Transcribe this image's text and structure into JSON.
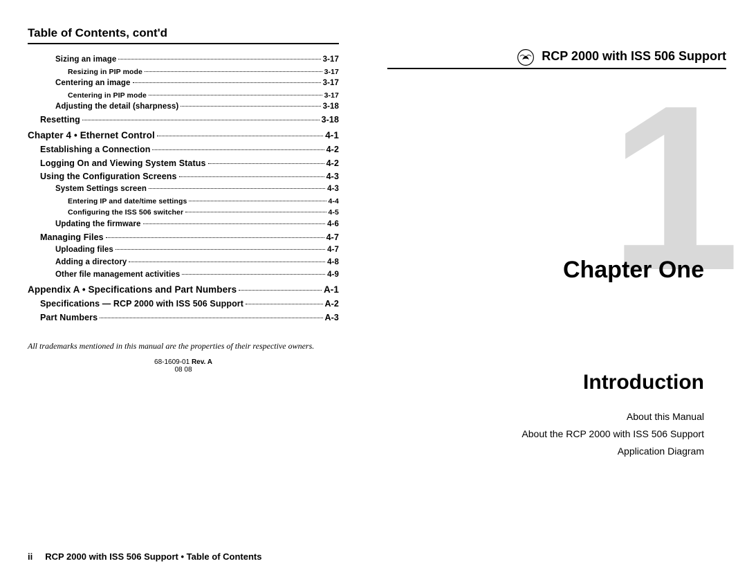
{
  "colors": {
    "text": "#000000",
    "background": "#ffffff",
    "big_number": "#d9d9d9",
    "rule": "#000000"
  },
  "left": {
    "header": "Table of Contents, cont'd",
    "toc": [
      {
        "label": "Sizing an image",
        "page": "3-17",
        "level": 3
      },
      {
        "label": "Resizing in PIP mode",
        "page": "3-17",
        "level": 4
      },
      {
        "label": "Centering an image",
        "page": "3-17",
        "level": 3
      },
      {
        "label": "Centering in PIP mode",
        "page": "3-17",
        "level": 4
      },
      {
        "label": "Adjusting the detail (sharpness)",
        "page": "3-18",
        "level": 3
      },
      {
        "label": "Resetting",
        "page": "3-18",
        "level": 2
      },
      {
        "label": "Chapter 4 • Ethernet Control",
        "page": "4-1",
        "level": 1
      },
      {
        "label": "Establishing a Connection",
        "page": "4-2",
        "level": 2
      },
      {
        "label": "Logging On and Viewing System Status",
        "page": "4-2",
        "level": 2
      },
      {
        "label": "Using the Configuration Screens",
        "page": "4-3",
        "level": 2
      },
      {
        "label": "System Settings screen",
        "page": "4-3",
        "level": 3
      },
      {
        "label": "Entering IP and date/time settings",
        "page": "4-4",
        "level": 4
      },
      {
        "label": "Configuring the ISS 506 switcher",
        "page": "4-5",
        "level": 4
      },
      {
        "label": "Updating the firmware",
        "page": "4-6",
        "level": 3
      },
      {
        "label": "Managing Files",
        "page": "4-7",
        "level": 2
      },
      {
        "label": "Uploading files",
        "page": "4-7",
        "level": 3
      },
      {
        "label": "Adding a directory",
        "page": "4-8",
        "level": 3
      },
      {
        "label": "Other file management activities",
        "page": "4-9",
        "level": 3
      },
      {
        "label": "Appendix A • Specifications and Part Numbers",
        "page": "A-1",
        "level": 1
      },
      {
        "label": "Specifications — RCP 2000 with ISS 506 Support",
        "page": "A-2",
        "level": 2
      },
      {
        "label": "Part Numbers",
        "page": "A-3",
        "level": 2
      }
    ],
    "trademark": "All trademarks mentioned in this manual are the properties of their respective owners.",
    "rev_prefix": "68-1609-01 ",
    "rev_bold": "Rev. A",
    "rev_date": "08 08",
    "footer_pagenum": "ii",
    "footer_line": "RCP 2000 with ISS 506 Support • Table of Contents"
  },
  "right": {
    "doc_title": "RCP 2000 with ISS 506 Support",
    "big_number": "1",
    "chapter_label": "Chapter One",
    "chapter_name": "Introduction",
    "sub_items": [
      "About this Manual",
      "About the RCP 2000 with ISS 506 Support",
      "Application Diagram"
    ]
  }
}
